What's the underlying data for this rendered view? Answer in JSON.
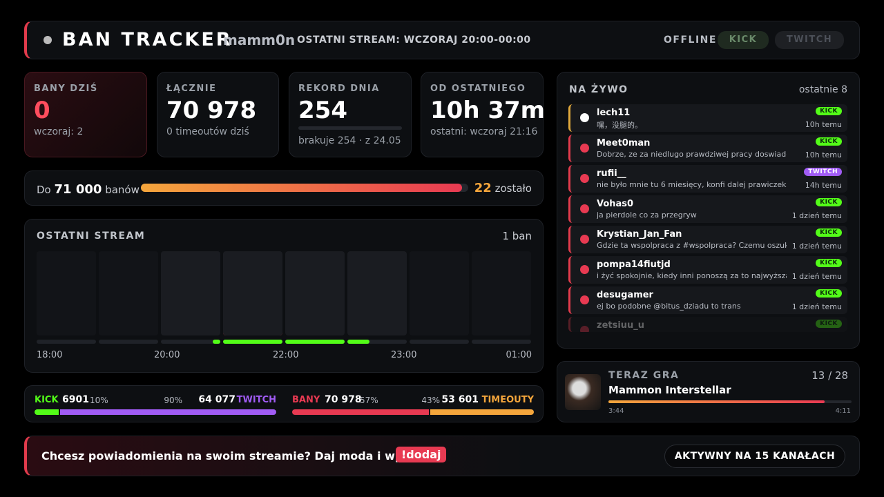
{
  "header": {
    "title": "BAN TRACKER",
    "user": "mamm0n",
    "last_stream": "OSTATNI STREAM: WCZORAJ 20:00-00:00",
    "status": "OFFLINE",
    "platforms": [
      "KICK",
      "TWITCH"
    ]
  },
  "stats": [
    {
      "label": "BANY DZIŚ",
      "value": "0",
      "sub": "wczoraj: 2"
    },
    {
      "label": "ŁĄCZNIE",
      "value": "70 978",
      "sub": "0 timeoutów dziś"
    },
    {
      "label": "REKORD DNIA",
      "value": "254",
      "sub": "brakuje 254 · z 24.05"
    },
    {
      "label": "OD OSTATNIEGO",
      "value": "10h 37m",
      "sub": "ostatni: wczoraj 21:16"
    }
  ],
  "goal": {
    "prefix": "Do",
    "target": "71 000",
    "suffix": "banów",
    "remaining": "22",
    "remaining_label": "zostało"
  },
  "stream": {
    "title": "OSTATNI STREAM",
    "count": "1 ban",
    "times": [
      "18:00",
      "20:00",
      "22:00",
      "23:00",
      "01:00"
    ]
  },
  "split": {
    "platform": {
      "left_label": "KICK",
      "left_value": "6901",
      "left_pct": "10%",
      "right_pct": "90%",
      "right_value": "64 077",
      "right_label": "TWITCH"
    },
    "type": {
      "left_label": "BANY",
      "left_value": "70 978",
      "left_pct": "57%",
      "right_pct": "43%",
      "right_value": "53 601",
      "right_label": "TIMEOUTY"
    }
  },
  "live": {
    "title": "NA ŻYWO",
    "subtitle": "ostatnie 8",
    "items": [
      {
        "user": "lech11",
        "message": "嘿，没腿的。",
        "platform": "KICK",
        "time": "10h temu"
      },
      {
        "user": "Meet0man",
        "message": "Dobrze, ze za niedlugo prawdziwej pracy doswiadczysz",
        "platform": "KICK",
        "time": "10h temu"
      },
      {
        "user": "rufii__",
        "message": "nie było mnie tu 6 miesięcy, konfi dalej prawiczek?",
        "platform": "TWITCH",
        "time": "14h temu"
      },
      {
        "user": "Vohas0",
        "message": "ja pierdole co za przegryw",
        "platform": "KICK",
        "time": "1 dzień temu"
      },
      {
        "user": "Krystian_Jan_Fan",
        "message": "Gdzie ta wspolpraca z #wspolpraca? Czemu oszukujesz",
        "platform": "KICK",
        "time": "1 dzień temu"
      },
      {
        "user": "pompa14fiutjd",
        "message": "i żyć spokojnie, kiedy inni ponoszą za to najwyższą cenę",
        "platform": "KICK",
        "time": "1 dzień temu"
      },
      {
        "user": "desugamer",
        "message": "ej bo podobne @bitus_dziadu to trans",
        "platform": "KICK",
        "time": "1 dzień temu"
      },
      {
        "user": "zetsiuu_u",
        "platform": "KICK"
      }
    ]
  },
  "now_playing": {
    "title": "TERAZ GRA",
    "position": "13 / 28",
    "track": "Mammon Interstellar",
    "elapsed": "3:44",
    "duration": "4:11"
  },
  "footer": {
    "message": "Chcesz powiadomienia na swoim streamie? Daj moda i wpisz",
    "command": "!dodaj",
    "channels": "AKTYWNY NA 15 KANAŁACH"
  }
}
